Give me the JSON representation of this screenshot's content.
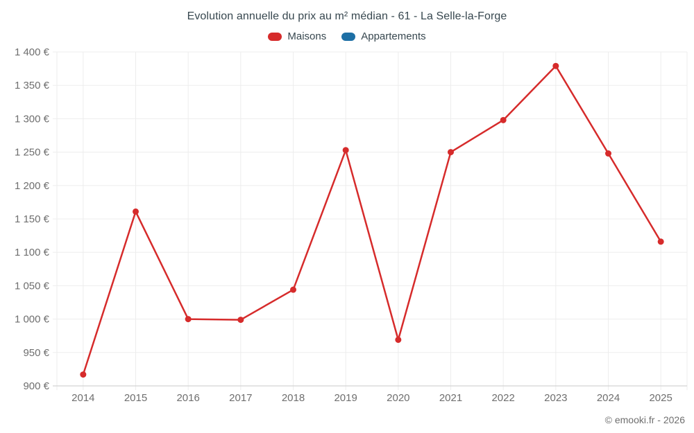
{
  "chart_data": {
    "type": "line",
    "title": "Evolution annuelle du prix au m² médian - 61 - La Selle-la-Forge",
    "categories": [
      "2014",
      "2015",
      "2016",
      "2017",
      "2018",
      "2019",
      "2020",
      "2021",
      "2022",
      "2023",
      "2024",
      "2025"
    ],
    "series": [
      {
        "name": "Maisons",
        "color": "#d62b2b",
        "values": [
          917,
          1161,
          1000,
          999,
          1044,
          1253,
          969,
          1250,
          1298,
          1379,
          1248,
          1116
        ]
      },
      {
        "name": "Appartements",
        "color": "#1d6fa5",
        "values": []
      }
    ],
    "xlabel": "",
    "ylabel": "",
    "unit": "€",
    "ylim": [
      900,
      1400
    ],
    "ytick_step": 50,
    "ytick_labels": [
      "900 €",
      "950 €",
      "1 000 €",
      "1 050 €",
      "1 100 €",
      "1 150 €",
      "1 200 €",
      "1 250 €",
      "1 300 €",
      "1 350 €",
      "1 400 €"
    ],
    "grid": true,
    "legend_position": "top",
    "colors": {
      "grid_line": "#ededed",
      "axis_line": "#d4d4d4",
      "tick_text": "#6e6e6e",
      "title_text": "#37474f"
    }
  },
  "footer": {
    "credit": "© emooki.fr - 2026"
  }
}
